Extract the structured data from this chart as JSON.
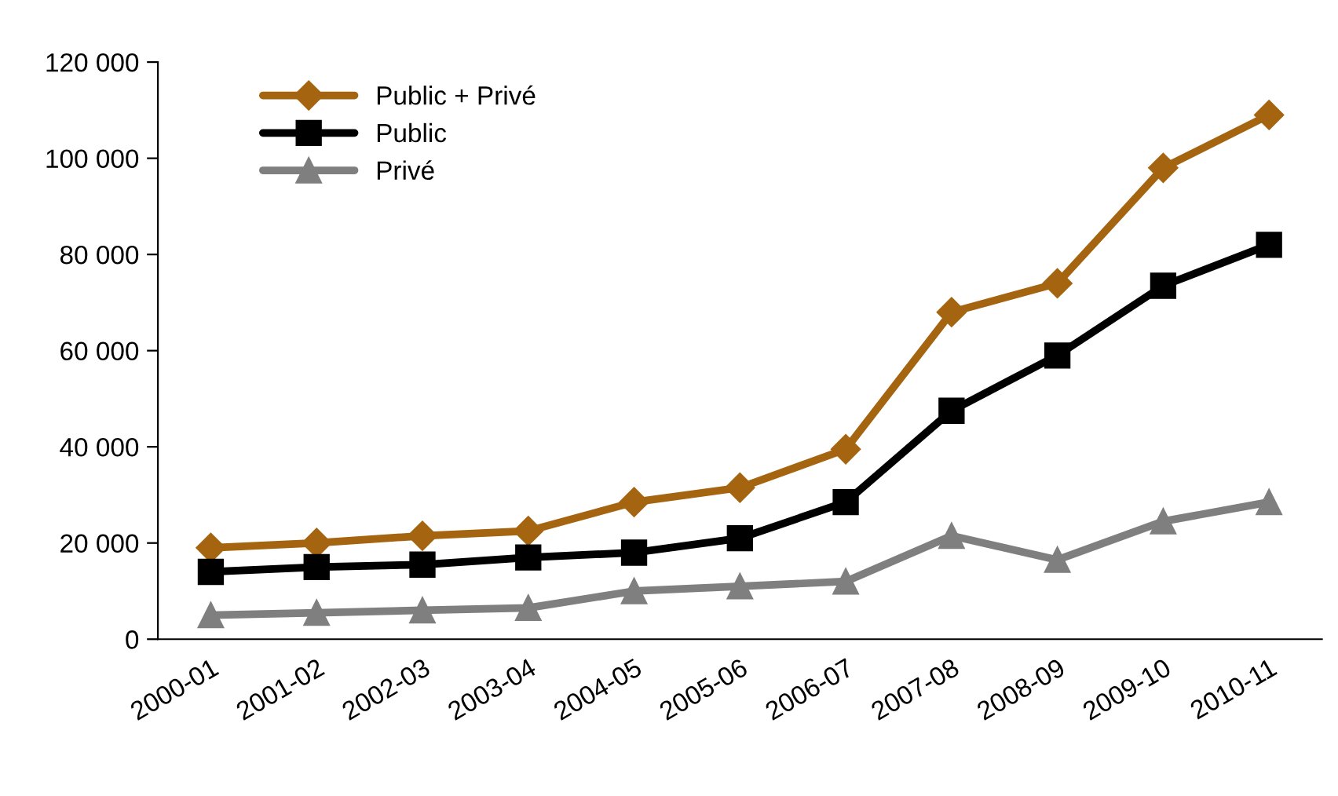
{
  "chart_data": {
    "type": "line",
    "categories": [
      "2000-01",
      "2001-02",
      "2002-03",
      "2003-04",
      "2004-05",
      "2005-06",
      "2006-07",
      "2007-08",
      "2008-09",
      "2009-10",
      "2010-11"
    ],
    "series": [
      {
        "name": "Public + Privé",
        "color": "#a5640f",
        "marker": "diamond",
        "values": [
          19000,
          20000,
          21500,
          22500,
          28500,
          31500,
          39500,
          68000,
          74000,
          98000,
          109000
        ]
      },
      {
        "name": "Public",
        "color": "#000000",
        "marker": "square",
        "values": [
          14000,
          15000,
          15500,
          17000,
          18000,
          21000,
          28500,
          47500,
          59000,
          73500,
          82000
        ]
      },
      {
        "name": "Privé",
        "color": "#7f7f7f",
        "marker": "triangle",
        "values": [
          5000,
          5500,
          6000,
          6500,
          10000,
          11000,
          12000,
          21500,
          16500,
          24500,
          28500
        ]
      }
    ],
    "ylim": [
      0,
      120000
    ],
    "yticks": [
      {
        "value": 0,
        "label": "0"
      },
      {
        "value": 20000,
        "label": "20 000"
      },
      {
        "value": 40000,
        "label": "40 000"
      },
      {
        "value": 60000,
        "label": "60 000"
      },
      {
        "value": 80000,
        "label": "80 000"
      },
      {
        "value": 100000,
        "label": "100 000"
      },
      {
        "value": 120000,
        "label": "120 000"
      }
    ],
    "grid": false,
    "legend": "top left",
    "line_style": "solid"
  }
}
